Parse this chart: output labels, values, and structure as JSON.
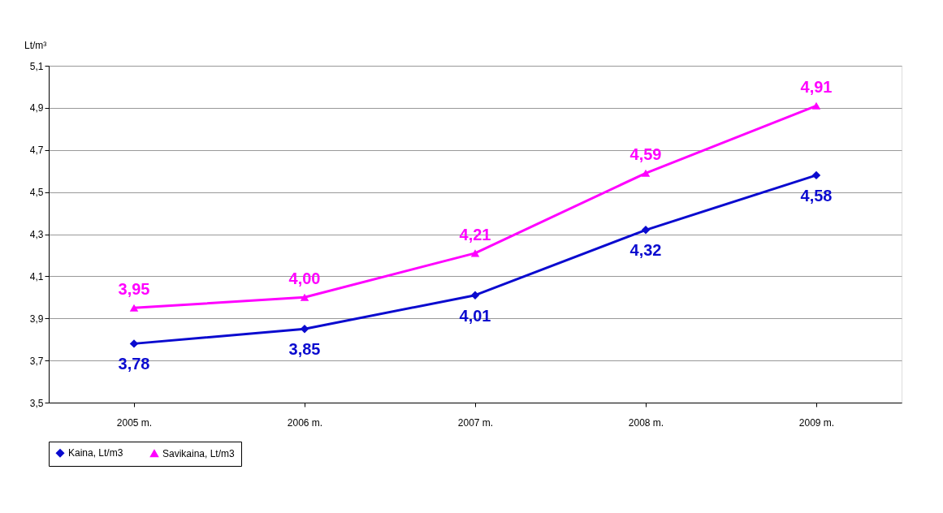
{
  "chart_data": {
    "type": "line",
    "ylabel": "Lt/m³",
    "categories": [
      "2005 m.",
      "2006 m.",
      "2007 m.",
      "2008 m.",
      "2009 m."
    ],
    "series": [
      {
        "name": "Kaina, Lt/m3",
        "color": "#0a0acf",
        "marker": "diamond",
        "values": [
          3.78,
          3.85,
          4.01,
          4.32,
          4.58
        ],
        "value_labels": [
          "3,78",
          "3,85",
          "4,01",
          "4,32",
          "4,58"
        ]
      },
      {
        "name": "Savikaina, Lt/m3",
        "color": "#ff00ff",
        "marker": "triangle",
        "values": [
          3.95,
          4.0,
          4.21,
          4.59,
          4.91
        ],
        "value_labels": [
          "3,95",
          "4,00",
          "4,21",
          "4,59",
          "4,91"
        ]
      }
    ],
    "ylim": [
      3.5,
      5.1
    ],
    "yticks": [
      {
        "value": 3.5,
        "label": "3,5"
      },
      {
        "value": 3.7,
        "label": "3,7"
      },
      {
        "value": 3.9,
        "label": "3,9"
      },
      {
        "value": 4.1,
        "label": "4,1"
      },
      {
        "value": 4.3,
        "label": "4,3"
      },
      {
        "value": 4.5,
        "label": "4,5"
      },
      {
        "value": 4.7,
        "label": "4,7"
      },
      {
        "value": 4.9,
        "label": "4,9"
      },
      {
        "value": 5.1,
        "label": "5,1"
      }
    ],
    "grid": "y",
    "legend": "bottom",
    "line_style": "solid"
  }
}
